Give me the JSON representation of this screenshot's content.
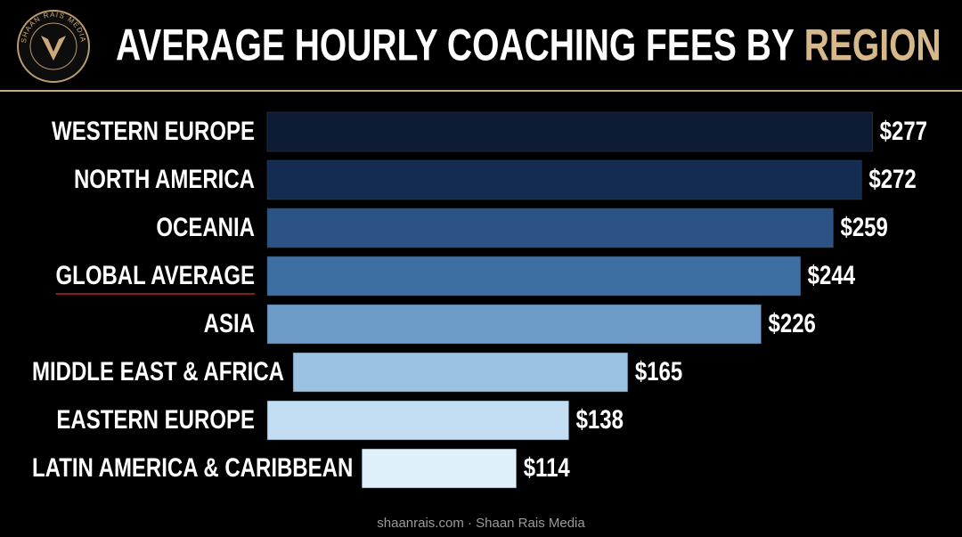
{
  "chart_data": {
    "type": "bar",
    "orientation": "horizontal",
    "title": "AVERAGE HOURLY COACHING FEES BY",
    "title_highlight": "REGION",
    "logo_text": "SHAAN RAIS MEDIA",
    "footer": "shaanrais.com · Shaan Rais Media",
    "categories": [
      "WESTERN EUROPE",
      "NORTH AMERICA",
      "OCEANIA",
      "GLOBAL AVERAGE",
      "ASIA",
      "MIDDLE EAST & AFRICA",
      "EASTERN EUROPE",
      "LATIN AMERICA & CARIBBEAN"
    ],
    "values": [
      277,
      272,
      259,
      244,
      226,
      165,
      138,
      114
    ],
    "value_labels": [
      "$277",
      "$272",
      "$259",
      "$244",
      "$226",
      "$165",
      "$138",
      "$114"
    ],
    "colors": [
      "#0c1a33",
      "#152c52",
      "#2b5485",
      "#3e6fa3",
      "#6d9cc8",
      "#9cc2e1",
      "#c3def2",
      "#dff0fb"
    ],
    "highlight_index": 3,
    "xlim": [
      0,
      280
    ]
  }
}
